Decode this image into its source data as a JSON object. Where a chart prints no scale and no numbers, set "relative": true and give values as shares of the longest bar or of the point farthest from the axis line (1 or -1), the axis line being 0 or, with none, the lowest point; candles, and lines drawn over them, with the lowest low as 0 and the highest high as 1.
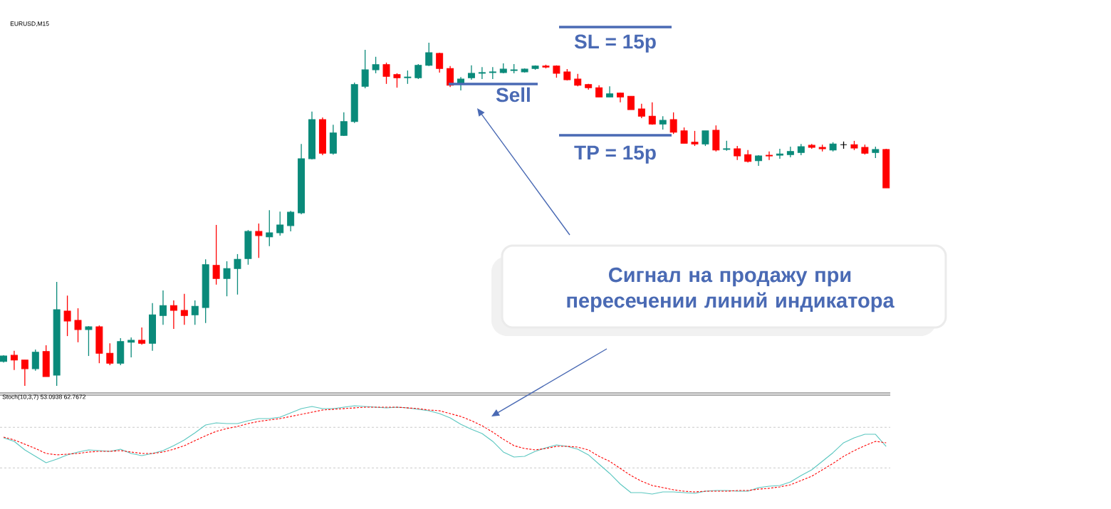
{
  "chart_data": [
    {
      "type": "candlestick",
      "title": "EURUSD,M15",
      "relative": true,
      "categories": [
        null,
        null,
        null,
        null,
        null,
        null,
        null,
        null,
        null,
        null,
        null,
        null,
        null,
        null,
        null,
        null,
        null,
        null,
        null,
        null,
        null,
        null,
        null,
        null,
        null,
        null,
        null,
        null,
        null,
        null,
        null,
        null,
        null,
        null,
        null,
        null,
        null,
        null,
        null,
        null,
        null,
        null,
        null,
        null,
        null,
        null,
        null,
        null,
        null,
        null,
        null,
        null,
        null,
        null,
        null,
        null,
        null,
        null,
        null,
        null,
        null,
        null,
        null,
        null,
        null,
        null,
        null,
        null,
        null,
        null,
        null,
        null,
        null,
        null,
        null,
        null,
        null,
        null,
        null,
        null,
        null,
        null,
        null,
        null
      ],
      "ohlc": [
        [
          0.071,
          0.089,
          0.068,
          0.087
        ],
        [
          0.089,
          0.102,
          0.046,
          0.075
        ],
        [
          0.075,
          0.075,
          0,
          0.05
        ],
        [
          0.05,
          0.106,
          0.044,
          0.098
        ],
        [
          0.1,
          0.118,
          0.027,
          0.027
        ],
        [
          0.031,
          0.303,
          0,
          0.222
        ],
        [
          0.218,
          0.263,
          0.145,
          0.189
        ],
        [
          0.191,
          0.226,
          0.127,
          0.164
        ],
        [
          0.164,
          0.174,
          0.087,
          0.172
        ],
        [
          0.172,
          0.176,
          0.066,
          0.095
        ],
        [
          0.095,
          0.124,
          0.06,
          0.066
        ],
        [
          0.066,
          0.139,
          0.06,
          0.129
        ],
        [
          0.127,
          0.141,
          0.083,
          0.133
        ],
        [
          0.133,
          0.17,
          0.12,
          0.124
        ],
        [
          0.124,
          0.241,
          0.102,
          0.207
        ],
        [
          0.205,
          0.278,
          0.178,
          0.234
        ],
        [
          0.234,
          0.249,
          0.166,
          0.22
        ],
        [
          0.22,
          0.268,
          0.178,
          0.205
        ],
        [
          0.207,
          0.249,
          0.178,
          0.232
        ],
        [
          0.228,
          0.369,
          0.183,
          0.353
        ],
        [
          0.351,
          0.469,
          0.295,
          0.313
        ],
        [
          0.313,
          0.363,
          0.261,
          0.342
        ],
        [
          0.342,
          0.384,
          0.266,
          0.369
        ],
        [
          0.371,
          0.454,
          0.353,
          0.45
        ],
        [
          0.45,
          0.473,
          0.373,
          0.438
        ],
        [
          0.434,
          0.512,
          0.407,
          0.446
        ],
        [
          0.446,
          0.508,
          0.438,
          0.469
        ],
        [
          0.467,
          0.51,
          0.45,
          0.506
        ],
        [
          0.504,
          0.705,
          0.5,
          0.662
        ],
        [
          0.662,
          0.799,
          0.66,
          0.776
        ],
        [
          0.776,
          0.782,
          0.672,
          0.678
        ],
        [
          0.678,
          0.761,
          0.674,
          0.737
        ],
        [
          0.73,
          0.797,
          0.728,
          0.77
        ],
        [
          0.77,
          0.884,
          0.766,
          0.878
        ],
        [
          0.873,
          0.979,
          0.867,
          0.921
        ],
        [
          0.921,
          0.959,
          0.911,
          0.936
        ],
        [
          0.936,
          0.942,
          0.88,
          0.902
        ],
        [
          0.907,
          0.911,
          0.869,
          0.898
        ],
        [
          0.898,
          0.919,
          0.88,
          0.9
        ],
        [
          0.898,
          0.938,
          0.894,
          0.934
        ],
        [
          0.934,
          1,
          0.932,
          0.971
        ],
        [
          0.969,
          0.971,
          0.913,
          0.925
        ],
        [
          0.925,
          0.932,
          0.871,
          0.876
        ],
        [
          0.88,
          0.9,
          0.861,
          0.894
        ],
        [
          0.898,
          0.934,
          0.892,
          0.911
        ],
        [
          0.911,
          0.929,
          0.894,
          0.913
        ],
        [
          0.913,
          0.929,
          0.894,
          0.915
        ],
        [
          0.913,
          0.94,
          0.911,
          0.923
        ],
        [
          0.919,
          0.938,
          0.911,
          0.921
        ],
        [
          0.915,
          0.925,
          0.913,
          0.923
        ],
        [
          0.925,
          0.934,
          0.921,
          0.932
        ],
        [
          0.932,
          0.936,
          0.925,
          0.929
        ],
        [
          0.932,
          0.934,
          0.898,
          0.911
        ],
        [
          0.915,
          0.923,
          0.89,
          0.892
        ],
        [
          0.894,
          0.909,
          0.873,
          0.876
        ],
        [
          0.878,
          0.88,
          0.863,
          0.869
        ],
        [
          0.869,
          0.876,
          0.842,
          0.842
        ],
        [
          0.842,
          0.873,
          0.842,
          0.851
        ],
        [
          0.853,
          0.855,
          0.826,
          0.842
        ],
        [
          0.844,
          0.844,
          0.805,
          0.805
        ],
        [
          0.807,
          0.822,
          0.78,
          0.786
        ],
        [
          0.786,
          0.826,
          0.761,
          0.763
        ],
        [
          0.763,
          0.786,
          0.747,
          0.774
        ],
        [
          0.776,
          0.797,
          0.734,
          0.739
        ],
        [
          0.743,
          0.753,
          0.707,
          0.707
        ],
        [
          0.71,
          0.743,
          0.699,
          0.705
        ],
        [
          0.705,
          0.743,
          0.699,
          0.743
        ],
        [
          0.745,
          0.759,
          0.683,
          0.687
        ],
        [
          0.689,
          0.714,
          0.685,
          0.691
        ],
        [
          0.691,
          0.699,
          0.658,
          0.67
        ],
        [
          0.674,
          0.687,
          0.651,
          0.654
        ],
        [
          0.656,
          0.672,
          0.641,
          0.67
        ],
        [
          0.672,
          0.683,
          0.658,
          0.67
        ],
        [
          0.672,
          0.691,
          0.662,
          0.676
        ],
        [
          0.674,
          0.697,
          0.666,
          0.683
        ],
        [
          0.68,
          0.705,
          0.672,
          0.697
        ],
        [
          0.701,
          0.705,
          0.691,
          0.695
        ],
        [
          0.695,
          0.703,
          0.683,
          0.691
        ],
        [
          0.687,
          0.71,
          0.683,
          0.705
        ],
        [
          0.703,
          0.712,
          0.691,
          0.703
        ],
        [
          0.703,
          0.714,
          0.687,
          0.693
        ],
        [
          0.695,
          0.703,
          0.674,
          0.678
        ],
        [
          0.68,
          0.697,
          0.664,
          0.689
        ],
        [
          0.689,
          0.691,
          0.577,
          0.577
        ]
      ],
      "colors": [
        "#0a8a7a",
        "#ff0000",
        "#ff0000",
        "#0a8a7a",
        "#ff0000",
        "#0a8a7a",
        "#ff0000",
        "#ff0000",
        "#0a8a7a",
        "#ff0000",
        "#ff0000",
        "#0a8a7a",
        "#0a8a7a",
        "#ff0000",
        "#0a8a7a",
        "#0a8a7a",
        "#ff0000",
        "#ff0000",
        "#0a8a7a",
        "#0a8a7a",
        "#ff0000",
        "#0a8a7a",
        "#0a8a7a",
        "#0a8a7a",
        "#ff0000",
        "#0a8a7a",
        "#0a8a7a",
        "#0a8a7a",
        "#0a8a7a",
        "#0a8a7a",
        "#ff0000",
        "#0a8a7a",
        "#0a8a7a",
        "#0a8a7a",
        "#0a8a7a",
        "#0a8a7a",
        "#ff0000",
        "#ff0000",
        "#0a8a7a",
        "#0a8a7a",
        "#0a8a7a",
        "#ff0000",
        "#ff0000",
        "#0a8a7a",
        "#0a8a7a",
        "#0a8a7a",
        "#0a8a7a",
        "#0a8a7a",
        "#0a8a7a",
        "#0a8a7a",
        "#0a8a7a",
        "#ff0000",
        "#ff0000",
        "#ff0000",
        "#ff0000",
        "#ff0000",
        "#ff0000",
        "#0a8a7a",
        "#ff0000",
        "#ff0000",
        "#ff0000",
        "#ff0000",
        "#0a8a7a",
        "#ff0000",
        "#ff0000",
        "#ff0000",
        "#0a8a7a",
        "#ff0000",
        "#0a8a7a",
        "#ff0000",
        "#ff0000",
        "#0a8a7a",
        "#ff0000",
        "#0a8a7a",
        "#0a8a7a",
        "#0a8a7a",
        "#ff0000",
        "#ff0000",
        "#0a8a7a",
        "#000000",
        "#ff0000",
        "#ff0000",
        "#0a8a7a",
        "#ff0000"
      ],
      "annotations": [
        "Sell",
        "SL = 15p",
        "TP = 15p",
        "Сигнал на продажу при пересечении линий индикатора"
      ]
    },
    {
      "type": "line",
      "title": "Stoch(10,3,7) 53.0938 62.7672",
      "relative": true,
      "categories": [
        null,
        null,
        null,
        null,
        null,
        null,
        null,
        null,
        null,
        null,
        null,
        null,
        null,
        null,
        null,
        null,
        null,
        null,
        null,
        null,
        null,
        null,
        null,
        null,
        null,
        null,
        null,
        null,
        null,
        null,
        null,
        null,
        null,
        null,
        null,
        null,
        null,
        null,
        null,
        null,
        null,
        null,
        null,
        null,
        null,
        null,
        null,
        null,
        null,
        null,
        null,
        null,
        null,
        null,
        null,
        null,
        null,
        null,
        null,
        null,
        null,
        null,
        null,
        null,
        null,
        null,
        null,
        null,
        null,
        null,
        null,
        null,
        null,
        null,
        null,
        null,
        null,
        null,
        null,
        null,
        null,
        null,
        null,
        null
      ],
      "series": [
        {
          "color": "#5bc7c0",
          "line_style": "solid",
          "values": [
            0.637,
            0.597,
            0.5,
            0.427,
            0.355,
            0.395,
            0.444,
            0.476,
            0.5,
            0.492,
            0.484,
            0.508,
            0.46,
            0.435,
            0.46,
            0.492,
            0.548,
            0.613,
            0.694,
            0.782,
            0.806,
            0.798,
            0.798,
            0.831,
            0.855,
            0.855,
            0.871,
            0.919,
            0.968,
            0.992,
            0.968,
            0.968,
            0.984,
            1,
            0.992,
            0.984,
            0.976,
            0.984,
            0.976,
            0.96,
            0.944,
            0.911,
            0.863,
            0.79,
            0.734,
            0.685,
            0.597,
            0.476,
            0.419,
            0.427,
            0.484,
            0.524,
            0.556,
            0.54,
            0.508,
            0.444,
            0.339,
            0.234,
            0.113,
            0.016,
            0.016,
            0,
            0.024,
            0.024,
            0.016,
            0.008,
            0.032,
            0.04,
            0.04,
            0.032,
            0.032,
            0.073,
            0.089,
            0.097,
            0.137,
            0.21,
            0.274,
            0.371,
            0.468,
            0.581,
            0.637,
            0.677,
            0.677,
            0.54
          ]
        },
        {
          "color": "#ff0000",
          "line_style": "dashed",
          "values": [
            0.645,
            0.613,
            0.565,
            0.516,
            0.46,
            0.444,
            0.452,
            0.46,
            0.476,
            0.484,
            0.484,
            0.492,
            0.476,
            0.46,
            0.46,
            0.476,
            0.508,
            0.548,
            0.605,
            0.661,
            0.71,
            0.742,
            0.766,
            0.798,
            0.823,
            0.839,
            0.855,
            0.879,
            0.903,
            0.927,
            0.952,
            0.96,
            0.968,
            0.976,
            0.984,
            0.984,
            0.984,
            0.984,
            0.976,
            0.968,
            0.952,
            0.944,
            0.911,
            0.879,
            0.831,
            0.774,
            0.702,
            0.621,
            0.548,
            0.516,
            0.5,
            0.516,
            0.54,
            0.54,
            0.532,
            0.5,
            0.427,
            0.371,
            0.29,
            0.21,
            0.145,
            0.097,
            0.073,
            0.048,
            0.032,
            0.024,
            0.032,
            0.032,
            0.032,
            0.04,
            0.04,
            0.056,
            0.065,
            0.081,
            0.105,
            0.153,
            0.202,
            0.274,
            0.347,
            0.427,
            0.492,
            0.548,
            0.597,
            0.581
          ]
        }
      ],
      "ref_lines": [
        {
          "axis": "y",
          "value": 0.756,
          "color": "#bdbdbd",
          "line_style": "dashed"
        },
        {
          "axis": "y",
          "value": 0.296,
          "color": "#bdbdbd",
          "line_style": "dashed"
        }
      ]
    }
  ]
}
